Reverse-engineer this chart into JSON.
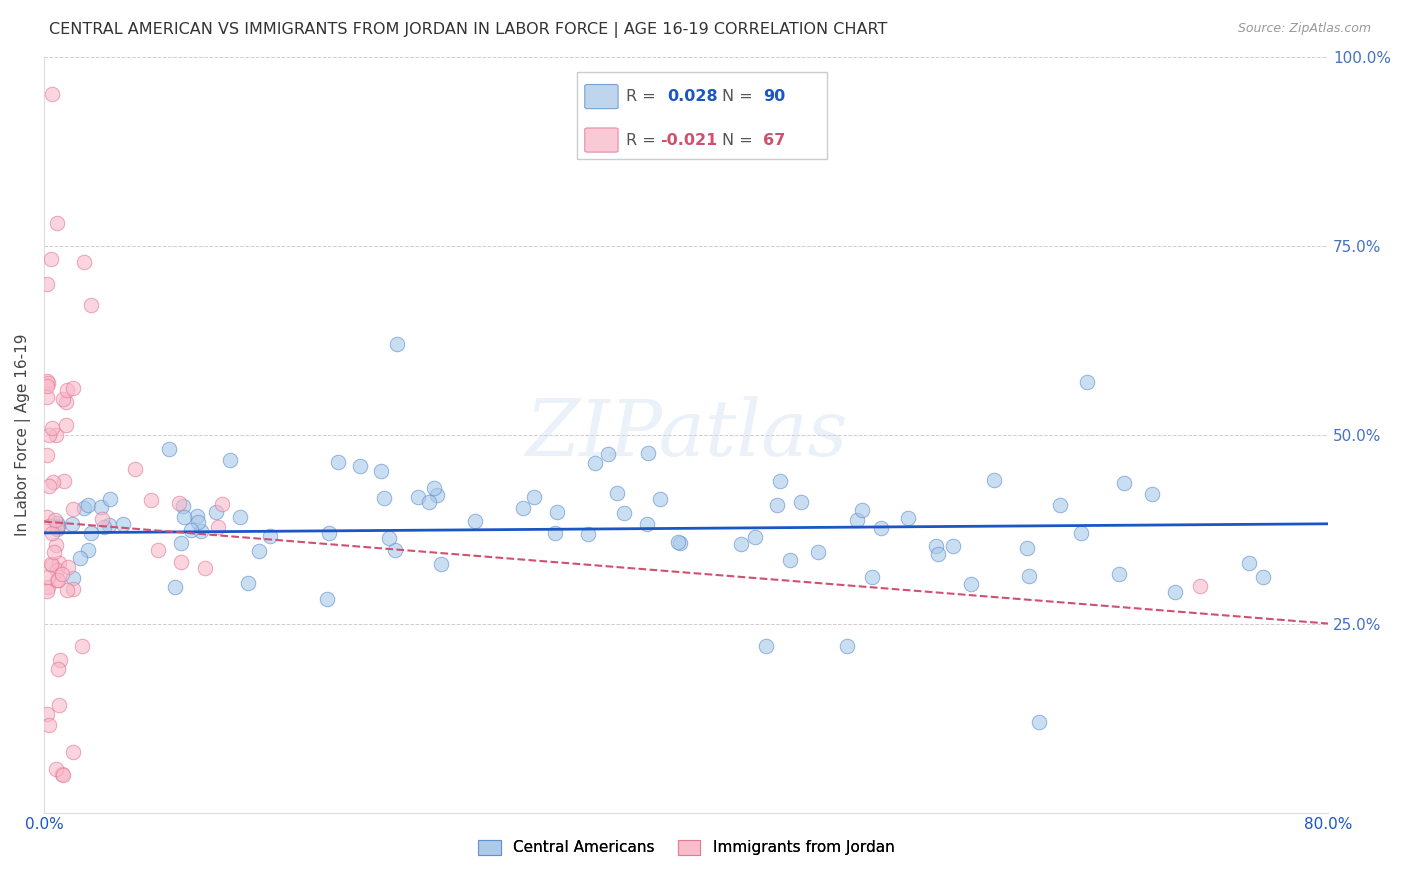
{
  "title": "CENTRAL AMERICAN VS IMMIGRANTS FROM JORDAN IN LABOR FORCE | AGE 16-19 CORRELATION CHART",
  "source": "Source: ZipAtlas.com",
  "ylabel": "In Labor Force | Age 16-19",
  "xlim": [
    0.0,
    0.8
  ],
  "ylim": [
    0.0,
    1.0
  ],
  "blue_color": "#a8c8e8",
  "blue_edge_color": "#5588cc",
  "blue_line_color": "#1a56c4",
  "pink_color": "#f8b8c8",
  "pink_edge_color": "#e07090",
  "pink_line_color": "#d05070",
  "grid_color": "#c8b0c0",
  "background_color": "#ffffff",
  "legend_label_blue": "Central Americans",
  "legend_label_pink": "Immigrants from Jordan",
  "blue_R": 0.028,
  "blue_N": 90,
  "pink_R": -0.021,
  "pink_N": 67,
  "blue_trend_x": [
    0.0,
    0.8
  ],
  "blue_trend_y": [
    0.37,
    0.382
  ],
  "pink_trend_x": [
    0.0,
    0.8
  ],
  "pink_trend_y": [
    0.385,
    0.25
  ],
  "watermark": "ZIPatlas",
  "right_tick_color": "#4472c4",
  "tick_fontsize": 11,
  "axis_label_fontsize": 11,
  "title_fontsize": 11.5
}
